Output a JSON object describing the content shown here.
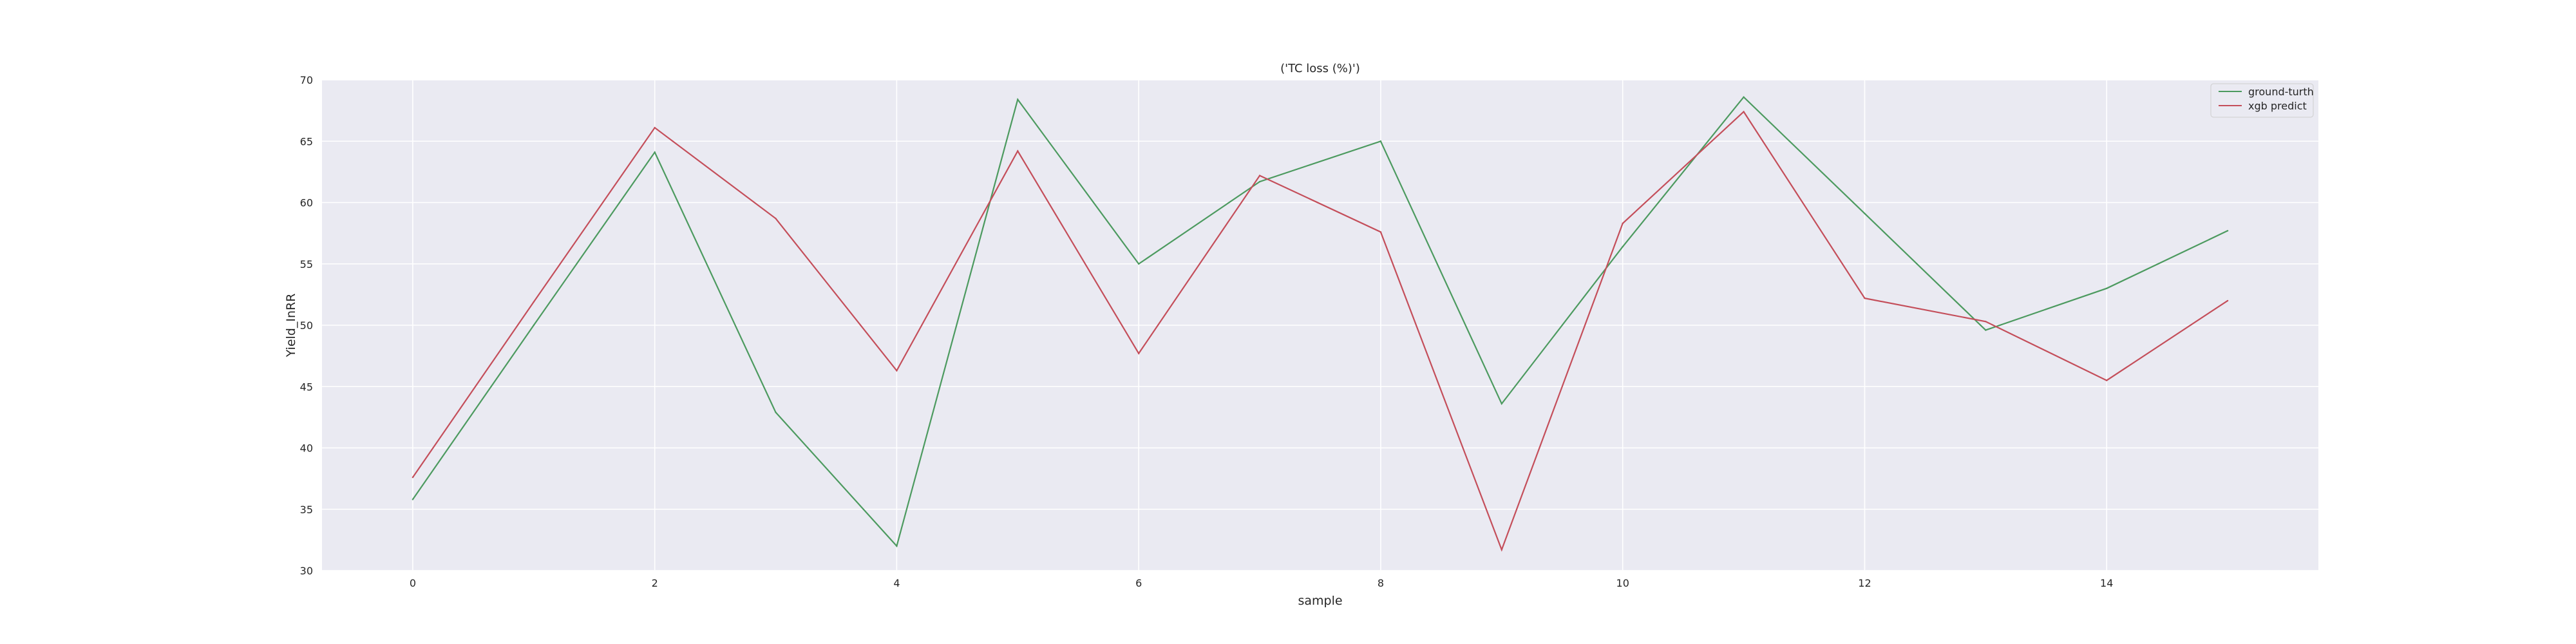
{
  "chart_data": {
    "type": "line",
    "title": "('TC loss (%)')",
    "xlabel": "sample",
    "ylabel": "Yield_InRR",
    "x": [
      0,
      1,
      2,
      3,
      4,
      5,
      6,
      7,
      8,
      9,
      10,
      11,
      12,
      13,
      14,
      15
    ],
    "xticks": [
      0,
      2,
      4,
      6,
      8,
      10,
      12,
      14
    ],
    "yticks": [
      30,
      35,
      40,
      45,
      50,
      55,
      60,
      65,
      70
    ],
    "xlim": [
      -0.75,
      15.75
    ],
    "ylim": [
      30,
      70
    ],
    "grid": true,
    "legend_position": "top-right",
    "series": [
      {
        "name": "ground-turth",
        "color": "#4c9a5f",
        "values": [
          35.8,
          50.0,
          64.1,
          42.9,
          32.0,
          68.4,
          55.0,
          61.7,
          65.0,
          43.6,
          56.4,
          68.6,
          59.1,
          49.6,
          53.0,
          57.7
        ]
      },
      {
        "name": "xgb predict",
        "color": "#c44e5a",
        "values": [
          37.6,
          51.9,
          66.1,
          58.7,
          46.3,
          64.2,
          47.7,
          62.2,
          57.6,
          31.7,
          58.3,
          67.4,
          52.2,
          50.3,
          45.5,
          52.0
        ]
      }
    ]
  }
}
